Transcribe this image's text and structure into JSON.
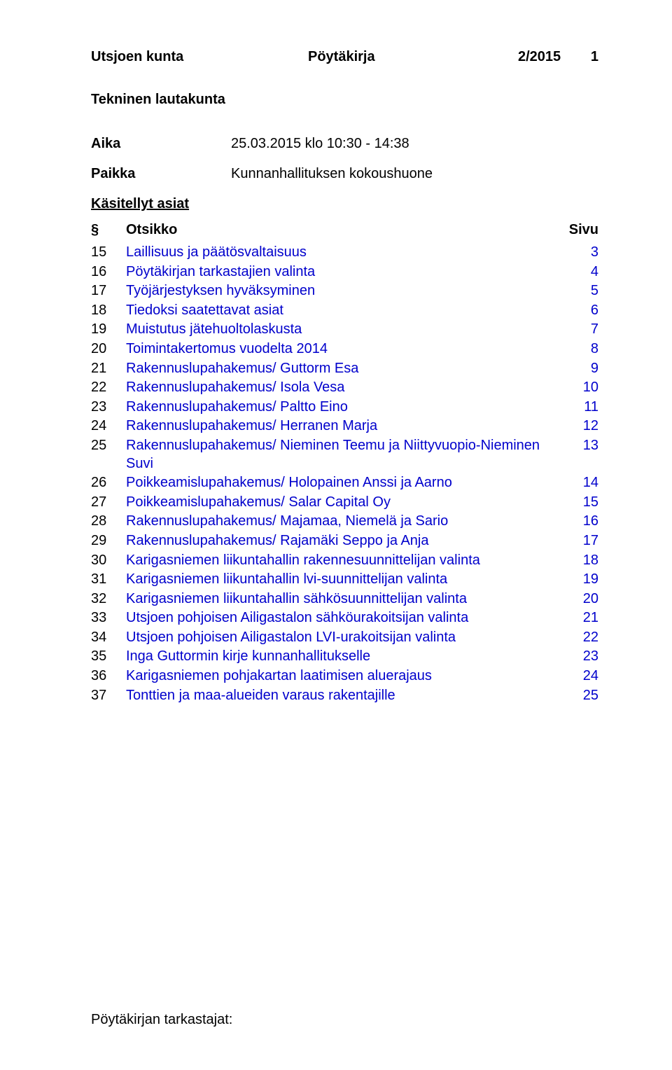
{
  "colors": {
    "link": "#0000cc",
    "text": "#000000",
    "background": "#ffffff"
  },
  "typography": {
    "body_fontsize_pt": 15,
    "font_family": "Arial"
  },
  "header": {
    "organization": "Utsjoen kunta",
    "doc_type": "Pöytäkirja",
    "doc_number": "2/2015",
    "page_number": "1"
  },
  "subtitle": "Tekninen lautakunta",
  "meta": {
    "aika_label": "Aika",
    "aika_value": "25.03.2015 klo 10:30 - 14:38",
    "paikka_label": "Paikka",
    "paikka_value": "Kunnanhallituksen kokoushuone"
  },
  "toc": {
    "section_heading": "Käsitellyt asiat",
    "columns": {
      "num": "§",
      "title": "Otsikko",
      "page": "Sivu"
    },
    "rows": [
      {
        "num": "15",
        "title": "Laillisuus ja päätösvaltaisuus",
        "page": "3"
      },
      {
        "num": "16",
        "title": "Pöytäkirjan tarkastajien valinta",
        "page": "4"
      },
      {
        "num": "17",
        "title": "Työjärjestyksen hyväksyminen",
        "page": "5"
      },
      {
        "num": "18",
        "title": "Tiedoksi saatettavat asiat",
        "page": "6"
      },
      {
        "num": "19",
        "title": "Muistutus jätehuoltolaskusta",
        "page": "7"
      },
      {
        "num": "20",
        "title": "Toimintakertomus vuodelta 2014",
        "page": "8"
      },
      {
        "num": "21",
        "title": "Rakennuslupahakemus/ Guttorm Esa",
        "page": "9"
      },
      {
        "num": "22",
        "title": "Rakennuslupahakemus/ Isola Vesa",
        "page": "10"
      },
      {
        "num": "23",
        "title": "Rakennuslupahakemus/ Paltto Eino",
        "page": "11"
      },
      {
        "num": "24",
        "title": "Rakennuslupahakemus/ Herranen Marja",
        "page": "12"
      },
      {
        "num": "25",
        "title": "Rakennuslupahakemus/ Nieminen Teemu ja Niittyvuopio-Nieminen Suvi",
        "page": "13"
      },
      {
        "num": "26",
        "title": "Poikkeamislupahakemus/ Holopainen Anssi ja Aarno",
        "page": "14"
      },
      {
        "num": "27",
        "title": "Poikkeamislupahakemus/ Salar Capital Oy",
        "page": "15"
      },
      {
        "num": "28",
        "title": "Rakennuslupahakemus/ Majamaa, Niemelä ja Sario",
        "page": "16"
      },
      {
        "num": "29",
        "title": "Rakennuslupahakemus/ Rajamäki Seppo ja Anja",
        "page": "17"
      },
      {
        "num": "30",
        "title": "Karigasniemen liikuntahallin rakennesuunnittelijan valinta",
        "page": "18"
      },
      {
        "num": "31",
        "title": "Karigasniemen liikuntahallin lvi-suunnittelijan valinta",
        "page": "19"
      },
      {
        "num": "32",
        "title": "Karigasniemen liikuntahallin sähkösuunnittelijan valinta",
        "page": "20"
      },
      {
        "num": "33",
        "title": "Utsjoen pohjoisen Ailigastalon sähköurakoitsijan valinta",
        "page": "21"
      },
      {
        "num": "34",
        "title": "Utsjoen pohjoisen Ailigastalon LVI-urakoitsijan valinta",
        "page": "22"
      },
      {
        "num": "35",
        "title": "Inga Guttormin kirje kunnanhallitukselle",
        "page": "23"
      },
      {
        "num": "36",
        "title": "Karigasniemen pohjakartan laatimisen aluerajaus",
        "page": "24"
      },
      {
        "num": "37",
        "title": "Tonttien ja maa-alueiden varaus rakentajille",
        "page": "25"
      }
    ]
  },
  "footer": "Pöytäkirjan tarkastajat:"
}
